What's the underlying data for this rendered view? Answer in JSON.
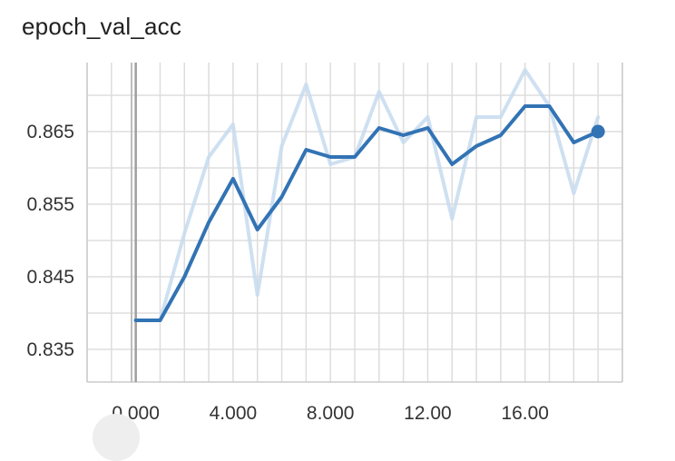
{
  "card": {
    "title": "epoch_val_acc"
  },
  "chart_data": {
    "type": "line",
    "title": "epoch_val_acc",
    "xlabel": "",
    "ylabel": "",
    "xlim": [
      -2,
      20
    ],
    "ylim": [
      0.8305,
      0.8745
    ],
    "x_ticks": [
      0,
      4,
      8,
      12,
      16
    ],
    "x_tick_labels": [
      "0.000",
      "4.000",
      "8.000",
      "12.00",
      "16.00"
    ],
    "y_ticks": [
      0.835,
      0.845,
      0.855,
      0.865
    ],
    "y_tick_labels": [
      "0.835",
      "0.845",
      "0.855",
      "0.865"
    ],
    "grid": true,
    "legend": "none",
    "series": [
      {
        "role": "raw",
        "color": "#c6dbef",
        "x": [
          0,
          1,
          2,
          3,
          4,
          5,
          6,
          7,
          8,
          9,
          10,
          11,
          12,
          13,
          14,
          15,
          16,
          17,
          18,
          19
        ],
        "values": [
          0.839,
          0.839,
          0.851,
          0.8615,
          0.866,
          0.8425,
          0.863,
          0.8715,
          0.8605,
          0.8615,
          0.8705,
          0.8635,
          0.867,
          0.853,
          0.867,
          0.867,
          0.8735,
          0.8685,
          0.8565,
          0.867
        ]
      },
      {
        "role": "smoothed",
        "color": "#3273b4",
        "x": [
          0,
          1,
          2,
          3,
          4,
          5,
          6,
          7,
          8,
          9,
          10,
          11,
          12,
          13,
          14,
          15,
          16,
          17,
          18,
          19
        ],
        "values": [
          0.839,
          0.839,
          0.845,
          0.8525,
          0.8585,
          0.8515,
          0.856,
          0.8625,
          0.8615,
          0.8615,
          0.8655,
          0.8645,
          0.8655,
          0.8605,
          0.863,
          0.8645,
          0.8685,
          0.8685,
          0.8635,
          0.865
        ]
      }
    ],
    "end_marker": {
      "x": 19,
      "value": 0.865,
      "color": "#3273b4"
    },
    "cursor_line": {
      "x": 0,
      "color": "#9e9e9e"
    }
  }
}
